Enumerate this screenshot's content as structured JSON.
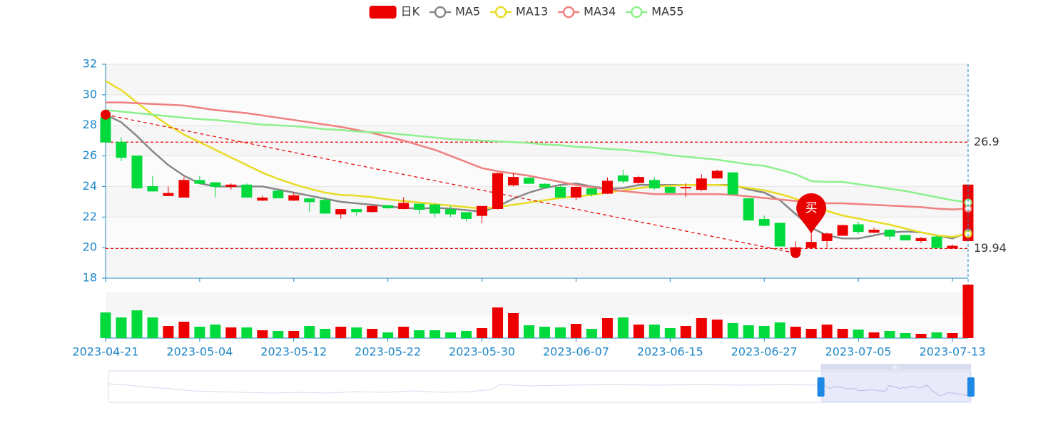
{
  "chart_data": {
    "type": "candlestick",
    "categories": [
      "2023-04-21",
      null,
      null,
      null,
      null,
      null,
      "2023-05-04",
      null,
      null,
      null,
      null,
      null,
      "2023-05-12",
      null,
      null,
      null,
      null,
      null,
      "2023-05-22",
      null,
      null,
      null,
      null,
      null,
      "2023-05-30",
      null,
      null,
      null,
      null,
      null,
      "2023-06-07",
      null,
      null,
      null,
      null,
      null,
      "2023-06-15",
      null,
      null,
      null,
      null,
      null,
      "2023-06-27",
      null,
      null,
      null,
      null,
      null,
      "2023-07-05",
      null,
      null,
      null,
      null,
      null,
      "2023-07-13",
      null
    ],
    "series": [
      {
        "name": "日K",
        "type": "candlestick",
        "up_color": "#ec0000",
        "down_color": "#00da3c",
        "open": [
          28.5,
          26.9,
          26.0,
          24.0,
          23.4,
          23.3,
          24.4,
          24.25,
          24.0,
          24.1,
          23.1,
          23.7,
          23.1,
          23.2,
          23.1,
          22.2,
          22.5,
          22.35,
          22.75,
          22.55,
          22.85,
          22.8,
          22.5,
          22.3,
          22.1,
          22.55,
          24.1,
          24.55,
          24.15,
          23.95,
          23.3,
          23.85,
          23.55,
          24.7,
          24.25,
          24.4,
          23.95,
          23.9,
          23.8,
          24.55,
          24.9,
          23.2,
          21.85,
          21.6,
          19.75,
          20.0,
          20.45,
          20.8,
          21.5,
          21.0,
          21.15,
          20.8,
          20.45,
          20.7,
          19.96,
          20.45
        ],
        "close": [
          26.9,
          25.9,
          23.9,
          23.7,
          23.55,
          24.4,
          24.2,
          24.0,
          24.1,
          23.3,
          23.25,
          23.25,
          23.4,
          23.0,
          22.25,
          22.5,
          22.35,
          22.7,
          22.6,
          22.9,
          22.5,
          22.25,
          22.2,
          21.9,
          22.7,
          24.85,
          24.6,
          24.2,
          23.95,
          23.3,
          23.95,
          23.5,
          24.35,
          24.35,
          24.6,
          23.9,
          23.6,
          23.95,
          24.5,
          25.0,
          23.5,
          21.8,
          21.45,
          20.1,
          20.0,
          20.35,
          20.9,
          21.45,
          21.05,
          21.15,
          20.75,
          20.5,
          20.6,
          20.0,
          20.1,
          24.1
        ],
        "low": [
          26.9,
          25.65,
          23.85,
          23.7,
          23.4,
          23.3,
          24.15,
          23.3,
          23.8,
          23.3,
          23.05,
          23.25,
          23.05,
          22.35,
          22.25,
          21.9,
          22.1,
          22.3,
          22.55,
          22.5,
          22.2,
          22.0,
          22.0,
          21.7,
          21.6,
          22.5,
          24.0,
          24.2,
          23.9,
          23.3,
          23.1,
          23.35,
          23.5,
          24.2,
          24.2,
          23.8,
          23.6,
          23.3,
          23.7,
          24.5,
          23.5,
          21.8,
          21.4,
          20.1,
          19.64,
          19.95,
          20.0,
          20.8,
          20.9,
          20.95,
          20.5,
          20.5,
          20.3,
          19.95,
          19.95,
          20.4
        ],
        "high": [
          28.7,
          27.2,
          26.0,
          24.7,
          24.0,
          24.6,
          24.7,
          24.3,
          24.2,
          24.2,
          23.4,
          23.8,
          23.6,
          23.2,
          23.3,
          22.5,
          22.5,
          22.75,
          22.8,
          23.3,
          22.9,
          22.9,
          22.7,
          22.3,
          22.7,
          24.9,
          24.9,
          24.6,
          24.2,
          24.1,
          24.0,
          23.9,
          24.6,
          25.1,
          24.7,
          24.6,
          24.0,
          24.2,
          24.8,
          25.1,
          24.9,
          23.2,
          22.1,
          21.6,
          20.4,
          20.9,
          21.0,
          21.5,
          21.7,
          21.3,
          21.2,
          20.85,
          20.7,
          20.8,
          20.2,
          24.15
        ]
      },
      {
        "name": "MA5",
        "type": "line",
        "color": "#888888",
        "values": [
          28.7,
          28.2,
          27.3,
          26.3,
          25.4,
          24.7,
          24.2,
          24.0,
          24.0,
          24.0,
          24.0,
          23.8,
          23.6,
          23.4,
          23.2,
          23.0,
          22.9,
          22.8,
          22.7,
          22.6,
          22.55,
          22.6,
          22.55,
          22.45,
          22.35,
          22.7,
          23.2,
          23.6,
          23.9,
          24.1,
          24.2,
          24.0,
          23.85,
          23.9,
          24.1,
          24.1,
          24.1,
          24.1,
          24.1,
          24.1,
          24.1,
          23.8,
          23.6,
          23.1,
          22.2,
          21.3,
          20.8,
          20.6,
          20.6,
          20.8,
          21.0,
          21.05,
          21.0,
          20.8,
          20.6,
          21.0
        ]
      },
      {
        "name": "MA13",
        "type": "line",
        "color": "#e8dc26",
        "values": [
          30.9,
          30.3,
          29.5,
          28.7,
          28.0,
          27.4,
          26.9,
          26.4,
          25.9,
          25.4,
          24.9,
          24.5,
          24.15,
          23.85,
          23.6,
          23.45,
          23.4,
          23.3,
          23.15,
          23.05,
          22.95,
          22.85,
          22.75,
          22.65,
          22.55,
          22.65,
          22.8,
          22.95,
          23.1,
          23.25,
          23.35,
          23.45,
          23.6,
          23.75,
          23.9,
          24.0,
          24.05,
          24.1,
          24.1,
          24.1,
          24.05,
          23.9,
          23.75,
          23.5,
          23.2,
          22.8,
          22.4,
          22.1,
          21.9,
          21.7,
          21.5,
          21.25,
          21.0,
          20.8,
          20.7,
          20.9
        ]
      },
      {
        "name": "MA34",
        "type": "line",
        "color": "#f08080",
        "values": [
          29.5,
          29.5,
          29.45,
          29.4,
          29.35,
          29.3,
          29.15,
          29.0,
          28.9,
          28.8,
          28.65,
          28.5,
          28.35,
          28.2,
          28.05,
          27.9,
          27.7,
          27.5,
          27.25,
          27.0,
          26.7,
          26.4,
          26.0,
          25.6,
          25.2,
          25.0,
          24.85,
          24.7,
          24.5,
          24.3,
          24.1,
          23.95,
          23.8,
          23.7,
          23.6,
          23.5,
          23.5,
          23.5,
          23.5,
          23.5,
          23.45,
          23.35,
          23.25,
          23.15,
          23.05,
          22.95,
          22.9,
          22.9,
          22.85,
          22.8,
          22.75,
          22.7,
          22.65,
          22.55,
          22.5,
          22.55
        ]
      },
      {
        "name": "MA55",
        "type": "line",
        "color": "#8ef08e",
        "values": [
          29.0,
          28.9,
          28.8,
          28.7,
          28.6,
          28.5,
          28.4,
          28.35,
          28.25,
          28.15,
          28.05,
          28.0,
          27.95,
          27.85,
          27.75,
          27.7,
          27.6,
          27.55,
          27.5,
          27.4,
          27.3,
          27.2,
          27.1,
          27.05,
          27.0,
          26.95,
          26.9,
          26.85,
          26.75,
          26.7,
          26.6,
          26.55,
          26.45,
          26.4,
          26.3,
          26.2,
          26.05,
          25.95,
          25.85,
          25.75,
          25.6,
          25.45,
          25.35,
          25.1,
          24.8,
          24.35,
          24.3,
          24.3,
          24.15,
          24.0,
          23.85,
          23.7,
          23.5,
          23.3,
          23.1,
          22.95
        ]
      }
    ],
    "volume": {
      "ylim": [
        0,
        64
      ],
      "values": [
        36,
        29,
        39,
        29,
        17,
        23,
        16,
        19,
        15,
        15,
        11,
        10,
        10,
        17,
        13,
        16,
        15,
        13,
        8,
        16,
        11,
        11,
        8,
        10,
        14,
        43,
        35,
        18,
        16,
        15,
        20,
        13,
        28,
        29,
        19,
        19,
        14,
        17,
        28,
        26,
        21,
        18,
        17,
        22,
        16,
        13,
        19,
        13,
        12,
        8,
        10,
        7,
        6,
        8,
        7,
        75
      ]
    },
    "ylim": [
      18,
      32
    ],
    "yticks": [
      18,
      20,
      22,
      24,
      26,
      28,
      30,
      32
    ],
    "mark_lines": [
      {
        "value": 26.9,
        "color": "#e60000"
      },
      {
        "value": 19.94,
        "color": "#e60000"
      }
    ],
    "annotations": [
      {
        "text": "买",
        "index": 45,
        "color": "#e60000"
      }
    ],
    "zoom": [
      82.6,
      100
    ]
  }
}
